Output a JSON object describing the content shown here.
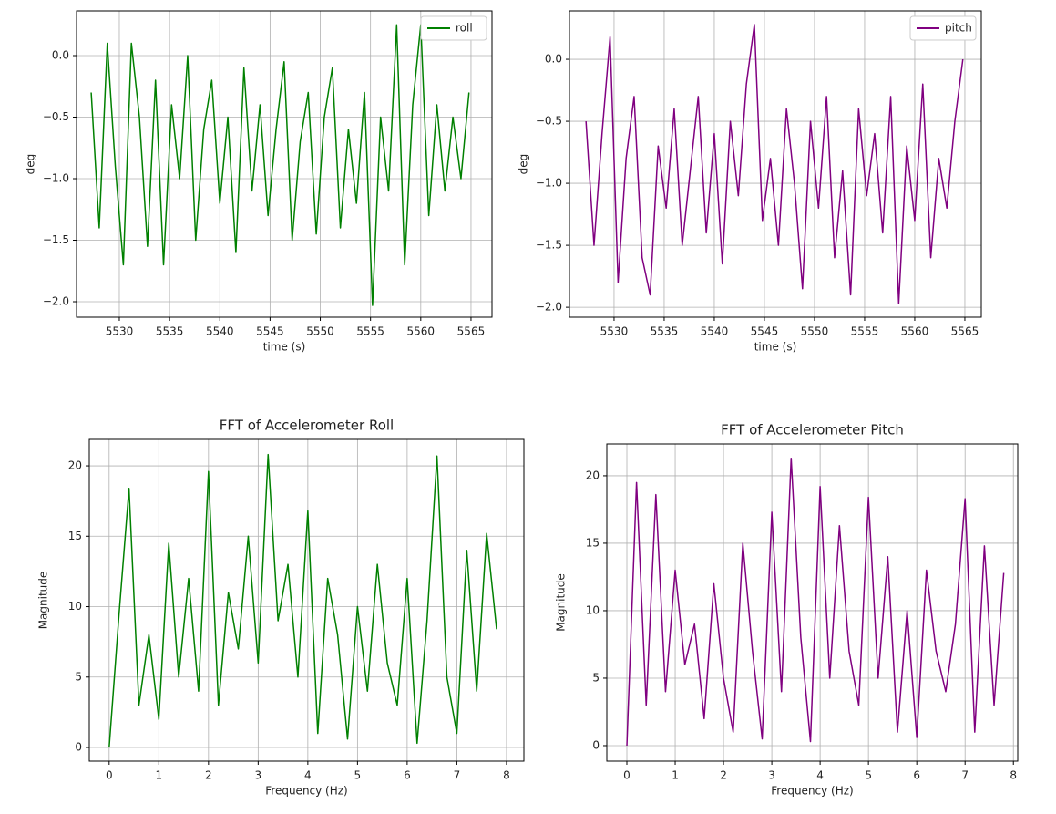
{
  "chart_data": [
    {
      "type": "line",
      "ylabel": "deg",
      "xlabel": "time (s)",
      "grid": true,
      "legend": "upper right",
      "xlim": [
        5525.74,
        5567.09
      ],
      "ylim": [
        -2.126,
        0.363
      ],
      "xticks": [
        5530,
        5535,
        5540,
        5545,
        5550,
        5555,
        5560,
        5565
      ],
      "yticks": [
        {
          "value": 0,
          "label": "0.0"
        },
        {
          "value": -0.5,
          "label": "−0.5"
        },
        {
          "value": -1.0,
          "label": "−1.0"
        },
        {
          "value": -1.5,
          "label": "−1.5"
        },
        {
          "value": -2.0,
          "label": "−2.0"
        }
      ],
      "x": [
        5527.2,
        5528.0,
        5528.8,
        5529.6,
        5530.4,
        5531.2,
        5532.0,
        5532.8,
        5533.6,
        5534.4,
        5535.2,
        5536.0,
        5536.8,
        5537.6,
        5538.4,
        5539.2,
        5540.0,
        5540.8,
        5541.6,
        5542.4,
        5543.2,
        5544.0,
        5544.8,
        5545.6,
        5546.4,
        5547.2,
        5548.0,
        5548.8,
        5549.6,
        5550.4,
        5551.2,
        5552.0,
        5552.8,
        5553.6,
        5554.4,
        5555.2,
        5556.0,
        5556.8,
        5557.6,
        5558.4,
        5559.2,
        5560.0,
        5560.8,
        5561.6,
        5562.4,
        5563.2,
        5564.0,
        5564.8
      ],
      "series": [
        {
          "name": "roll",
          "color": "#008000",
          "values": [
            -0.3,
            -1.4,
            0.1,
            -0.9,
            -1.7,
            0.1,
            -0.5,
            -1.55,
            -0.2,
            -1.7,
            -0.4,
            -1.0,
            0.0,
            -1.5,
            -0.6,
            -0.2,
            -1.2,
            -0.5,
            -1.6,
            -0.1,
            -1.1,
            -0.4,
            -1.3,
            -0.6,
            -0.05,
            -1.5,
            -0.7,
            -0.3,
            -1.45,
            -0.5,
            -0.1,
            -1.4,
            -0.6,
            -1.2,
            -0.3,
            -2.03,
            -0.5,
            -1.1,
            0.25,
            -1.7,
            -0.4,
            0.25,
            -1.3,
            -0.4,
            -1.1,
            -0.5,
            -1.0,
            -0.3
          ]
        }
      ]
    },
    {
      "type": "line",
      "ylabel": "deg",
      "xlabel": "time (s)",
      "grid": true,
      "legend": "upper right",
      "xlim": [
        5525.55,
        5566.64
      ],
      "ylim": [
        -2.08,
        0.39
      ],
      "xticks": [
        5530,
        5535,
        5540,
        5545,
        5550,
        5555,
        5560,
        5565
      ],
      "yticks": [
        {
          "value": 0,
          "label": "0.0"
        },
        {
          "value": -0.5,
          "label": "−0.5"
        },
        {
          "value": -1.0,
          "label": "−1.0"
        },
        {
          "value": -1.5,
          "label": "−1.5"
        },
        {
          "value": -2.0,
          "label": "−2.0"
        }
      ],
      "x": [
        5527.2,
        5528.0,
        5528.8,
        5529.6,
        5530.4,
        5531.2,
        5532.0,
        5532.8,
        5533.6,
        5534.4,
        5535.2,
        5536.0,
        5536.8,
        5537.6,
        5538.4,
        5539.2,
        5540.0,
        5540.8,
        5541.6,
        5542.4,
        5543.2,
        5544.0,
        5544.8,
        5545.6,
        5546.4,
        5547.2,
        5548.0,
        5548.8,
        5549.6,
        5550.4,
        5551.2,
        5552.0,
        5552.8,
        5553.6,
        5554.4,
        5555.2,
        5556.0,
        5556.8,
        5557.6,
        5558.4,
        5559.2,
        5560.0,
        5560.8,
        5561.6,
        5562.4,
        5563.2,
        5564.0,
        5564.8
      ],
      "series": [
        {
          "name": "pitch",
          "color": "#800080",
          "values": [
            -0.5,
            -1.5,
            -0.6,
            0.18,
            -1.8,
            -0.8,
            -0.3,
            -1.6,
            -1.9,
            -0.7,
            -1.2,
            -0.4,
            -1.5,
            -0.9,
            -0.3,
            -1.4,
            -0.6,
            -1.65,
            -0.5,
            -1.1,
            -0.2,
            0.28,
            -1.3,
            -0.8,
            -1.5,
            -0.4,
            -1.0,
            -1.85,
            -0.5,
            -1.2,
            -0.3,
            -1.6,
            -0.9,
            -1.9,
            -0.4,
            -1.1,
            -0.6,
            -1.4,
            -0.3,
            -1.97,
            -0.7,
            -1.3,
            -0.2,
            -1.6,
            -0.8,
            -1.2,
            -0.5,
            0.0
          ]
        }
      ]
    },
    {
      "type": "line",
      "title": "FFT of Accelerometer Roll",
      "ylabel": "Magnitude",
      "xlabel": "Frequency (Hz)",
      "grid": true,
      "xlim": [
        -0.4,
        8.35
      ],
      "ylim": [
        -0.97,
        21.88
      ],
      "xticks": [
        0,
        1,
        2,
        3,
        4,
        5,
        6,
        7,
        8
      ],
      "yticks": [
        0,
        5,
        10,
        15,
        20
      ],
      "x": [
        0,
        0.2,
        0.4,
        0.6,
        0.8,
        1.0,
        1.2,
        1.4,
        1.6,
        1.8,
        2.0,
        2.2,
        2.4,
        2.6,
        2.8,
        3.0,
        3.2,
        3.4,
        3.6,
        3.8,
        4.0,
        4.2,
        4.4,
        4.6,
        4.8,
        5.0,
        5.2,
        5.4,
        5.6,
        5.8,
        6.0,
        6.2,
        6.4,
        6.6,
        6.8,
        7.0,
        7.2,
        7.4,
        7.6,
        7.8
      ],
      "series": [
        {
          "color": "#008000",
          "values": [
            0,
            9.5,
            18.4,
            3,
            8,
            2,
            14.5,
            5,
            12,
            4,
            19.6,
            3,
            11,
            7,
            15,
            6,
            20.8,
            9,
            13,
            5,
            16.8,
            1,
            12,
            8,
            0.6,
            10,
            4,
            13,
            6,
            3,
            12,
            0.3,
            9,
            20.7,
            5,
            1,
            14,
            4,
            15.2,
            8.4
          ]
        }
      ]
    },
    {
      "type": "line",
      "title": "FFT of Accelerometer Pitch",
      "ylabel": "Magnitude",
      "xlabel": "Frequency (Hz)",
      "grid": true,
      "xlim": [
        -0.415,
        8.09
      ],
      "ylim": [
        -1.15,
        22.36
      ],
      "xticks": [
        0,
        1,
        2,
        3,
        4,
        5,
        6,
        7,
        8
      ],
      "yticks": [
        0,
        5,
        10,
        15,
        20
      ],
      "x": [
        0,
        0.2,
        0.4,
        0.6,
        0.8,
        1.0,
        1.2,
        1.4,
        1.6,
        1.8,
        2.0,
        2.2,
        2.4,
        2.6,
        2.8,
        3.0,
        3.2,
        3.4,
        3.6,
        3.8,
        4.0,
        4.2,
        4.4,
        4.6,
        4.8,
        5.0,
        5.2,
        5.4,
        5.6,
        5.8,
        6.0,
        6.2,
        6.4,
        6.6,
        6.8,
        7.0,
        7.2,
        7.4,
        7.6,
        7.8
      ],
      "series": [
        {
          "color": "#800080",
          "values": [
            0,
            19.5,
            3,
            18.6,
            4,
            13,
            6,
            9,
            2,
            12,
            5,
            1,
            15,
            7,
            0.5,
            17.3,
            4,
            21.3,
            8,
            0.3,
            19.2,
            5,
            16.3,
            7,
            3,
            18.4,
            5,
            14,
            1,
            10,
            0.6,
            13,
            7,
            4,
            9,
            18.3,
            1,
            14.8,
            3,
            12.8
          ]
        }
      ]
    }
  ]
}
